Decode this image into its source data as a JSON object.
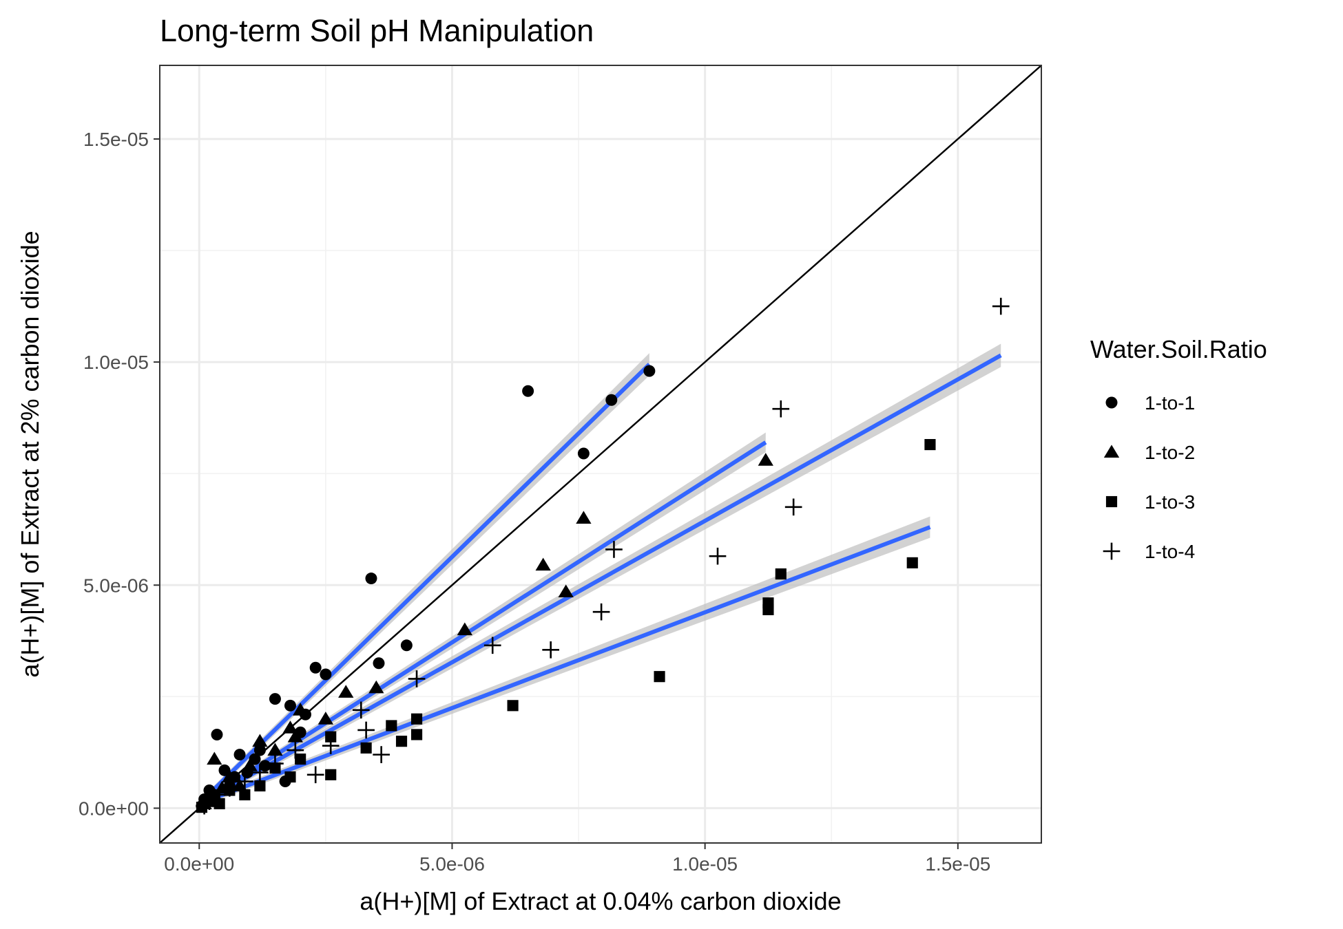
{
  "chart_data": {
    "type": "scatter",
    "title": "Long-term Soil pH Manipulation",
    "xlabel": "a(H+)[M] of Extract at 0.04% carbon dioxide",
    "ylabel": "a(H+)[M] of Extract at 2% carbon dioxide",
    "xlim": [
      -7.8e-07,
      1.665e-05
    ],
    "ylim": [
      -7.8e-07,
      1.665e-05
    ],
    "x_ticks": [
      0,
      5e-06,
      1e-05,
      1.5e-05
    ],
    "x_tick_labels": [
      "0.0e+00",
      "5.0e-06",
      "1.0e-05",
      "1.5e-05"
    ],
    "y_ticks": [
      0,
      5e-06,
      1e-05,
      1.5e-05
    ],
    "y_tick_labels": [
      "0.0e+00",
      "5.0e-06",
      "1.0e-05",
      "1.5e-05"
    ],
    "grid": true,
    "reference_line": "y = x",
    "legend": {
      "title": "Water.Soil.Ratio",
      "position": "right"
    },
    "fit_color": "#3366ff",
    "band_color": "#bfbfbf",
    "series": [
      {
        "name": "1-to-1",
        "shape": "circle",
        "fit": {
          "x": [
            0,
            8.9e-06
          ],
          "y": [
            1e-07,
            9.95e-06
          ],
          "se": 2.5e-07
        },
        "points": [
          [
            6.5e-06,
            9.35e-06
          ],
          [
            8.9e-06,
            9.8e-06
          ],
          [
            8.15e-06,
            9.15e-06
          ],
          [
            7.6e-06,
            7.95e-06
          ],
          [
            3.4e-06,
            5.15e-06
          ],
          [
            4.1e-06,
            3.65e-06
          ],
          [
            3.55e-06,
            3.25e-06
          ],
          [
            2.3e-06,
            3.15e-06
          ],
          [
            2.5e-06,
            3e-06
          ],
          [
            1.5e-06,
            2.45e-06
          ],
          [
            1.8e-06,
            2.3e-06
          ],
          [
            2.1e-06,
            2.1e-06
          ],
          [
            3.5e-07,
            1.65e-06
          ],
          [
            8e-07,
            1.2e-06
          ],
          [
            1.1e-06,
            1.1e-06
          ],
          [
            5e-07,
            8.5e-07
          ],
          [
            7e-07,
            7e-07
          ],
          [
            1.3e-06,
            9.5e-07
          ],
          [
            1.7e-06,
            6e-07
          ],
          [
            2e-07,
            4e-07
          ],
          [
            1e-07,
            2e-07
          ],
          [
            5e-08,
            5e-08
          ],
          [
            3e-07,
            3e-07
          ],
          [
            6e-07,
            5e-07
          ],
          [
            9.5e-07,
            8e-07
          ],
          [
            2e-06,
            1.7e-06
          ],
          [
            1.2e-06,
            1.3e-06
          ]
        ]
      },
      {
        "name": "1-to-2",
        "shape": "triangle",
        "fit": {
          "x": [
            0,
            1.12e-05
          ],
          "y": [
            1e-07,
            8.2e-06
          ],
          "se": 2.2e-07
        },
        "points": [
          [
            1.12e-05,
            7.8e-06
          ],
          [
            7.6e-06,
            6.5e-06
          ],
          [
            6.8e-06,
            5.45e-06
          ],
          [
            7.25e-06,
            4.85e-06
          ],
          [
            5.25e-06,
            4e-06
          ],
          [
            2.9e-06,
            2.6e-06
          ],
          [
            3.5e-06,
            2.7e-06
          ],
          [
            2e-06,
            2.2e-06
          ],
          [
            1.8e-06,
            1.8e-06
          ],
          [
            1.2e-06,
            1.5e-06
          ],
          [
            3e-07,
            1.1e-06
          ],
          [
            2.5e-06,
            2e-06
          ],
          [
            1e-06,
            9.5e-07
          ],
          [
            6e-07,
            7e-07
          ],
          [
            2e-07,
            3e-07
          ],
          [
            1.5e-06,
            1.3e-06
          ],
          [
            8e-07,
            5e-07
          ],
          [
            1e-07,
            1e-07
          ],
          [
            4.5e-07,
            4.5e-07
          ],
          [
            1.9e-06,
            1.6e-06
          ]
        ]
      },
      {
        "name": "1-to-3",
        "shape": "square",
        "fit": {
          "x": [
            0,
            1.445e-05
          ],
          "y": [
            1e-07,
            6.3e-06
          ],
          "se": 2.4e-07
        },
        "points": [
          [
            1.445e-05,
            8.15e-06
          ],
          [
            1.41e-05,
            5.5e-06
          ],
          [
            1.15e-05,
            5.25e-06
          ],
          [
            1.125e-05,
            4.6e-06
          ],
          [
            1.125e-05,
            4.45e-06
          ],
          [
            9.1e-06,
            2.95e-06
          ],
          [
            6.2e-06,
            2.3e-06
          ],
          [
            4.3e-06,
            2e-06
          ],
          [
            4.3e-06,
            1.65e-06
          ],
          [
            3.8e-06,
            1.85e-06
          ],
          [
            4e-06,
            1.5e-06
          ],
          [
            3.3e-06,
            1.35e-06
          ],
          [
            2.6e-06,
            1.6e-06
          ],
          [
            2.6e-06,
            7.5e-07
          ],
          [
            1.2e-06,
            5e-07
          ],
          [
            9e-07,
            3e-07
          ],
          [
            4e-07,
            1e-07
          ],
          [
            1.5e-06,
            9e-07
          ],
          [
            2e-06,
            1.1e-06
          ],
          [
            6e-07,
            4e-07
          ],
          [
            2e-07,
            1.5e-07
          ],
          [
            5e-08,
            2e-08
          ],
          [
            1.8e-06,
            7e-07
          ]
        ]
      },
      {
        "name": "1-to-4",
        "shape": "plus",
        "fit": {
          "x": [
            0,
            1.585e-05
          ],
          "y": [
            1e-07,
            1.015e-05
          ],
          "se": 2.6e-07
        },
        "points": [
          [
            1.585e-05,
            1.125e-05
          ],
          [
            1.15e-05,
            8.95e-06
          ],
          [
            1.175e-05,
            6.75e-06
          ],
          [
            8.2e-06,
            5.8e-06
          ],
          [
            1.025e-05,
            5.65e-06
          ],
          [
            7.95e-06,
            4.4e-06
          ],
          [
            5.8e-06,
            3.65e-06
          ],
          [
            6.95e-06,
            3.55e-06
          ],
          [
            4.3e-06,
            2.9e-06
          ],
          [
            3.2e-06,
            2.2e-06
          ],
          [
            3.3e-06,
            1.75e-06
          ],
          [
            3.6e-06,
            1.2e-06
          ],
          [
            2.3e-06,
            7.5e-07
          ],
          [
            2.6e-06,
            1.4e-06
          ],
          [
            1.5e-06,
            1e-06
          ],
          [
            9e-07,
            6e-07
          ],
          [
            4e-07,
            3e-07
          ],
          [
            1e-07,
            5e-08
          ],
          [
            1.9e-06,
            1.3e-06
          ],
          [
            6e-07,
            4.5e-07
          ],
          [
            1.2e-06,
            8e-07
          ],
          [
            2e-07,
            1.5e-07
          ]
        ]
      }
    ]
  }
}
